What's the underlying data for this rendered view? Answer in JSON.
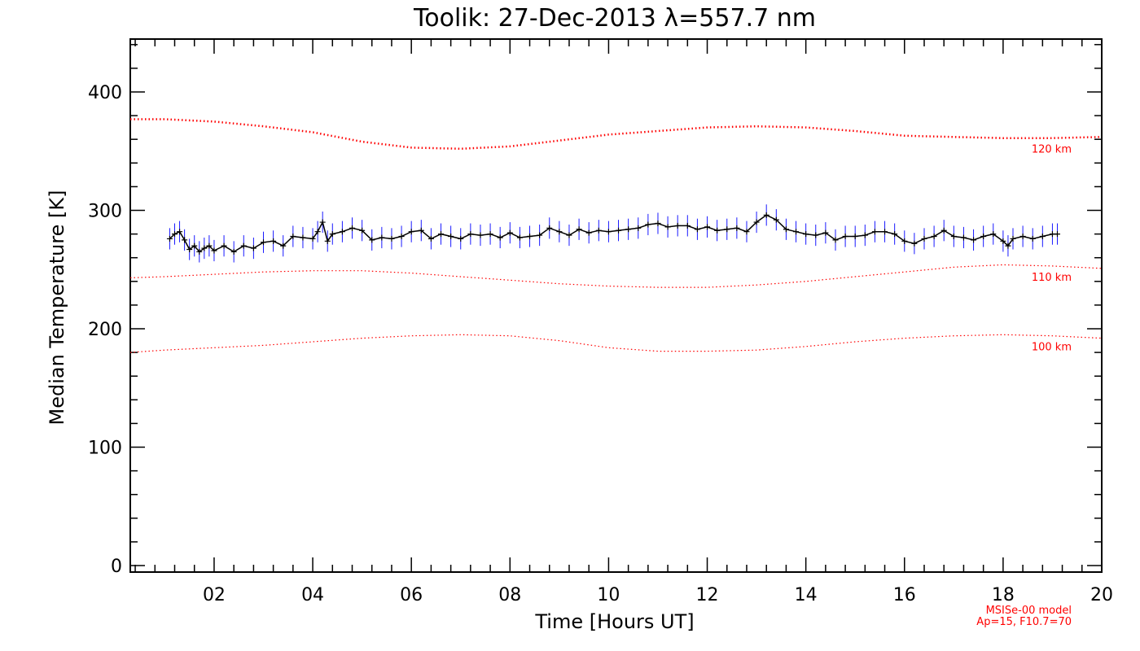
{
  "chart_data": {
    "type": "line",
    "title": "Toolik: 27-Dec-2013 λ=557.7 nm",
    "xlabel": "Time [Hours UT]",
    "ylabel": "Median Temperature [K]",
    "xlim": [
      0.3,
      20
    ],
    "ylim": [
      0,
      450
    ],
    "x_ticks": [
      2,
      4,
      6,
      8,
      10,
      12,
      14,
      16,
      18,
      20
    ],
    "x_tick_labels": [
      "02",
      "04",
      "06",
      "08",
      "10",
      "12",
      "14",
      "16",
      "18",
      "20"
    ],
    "y_ticks": [
      0,
      100,
      200,
      300,
      400
    ],
    "y_tick_labels": [
      "0",
      "100",
      "200",
      "300",
      "400"
    ],
    "grid": false,
    "colors": {
      "data_line": "#000000",
      "error_bars": "#1a1aff",
      "model": "#ff0000",
      "axes": "#000000"
    },
    "series": [
      {
        "x": [
          1.1,
          1.2,
          1.3,
          1.4,
          1.5,
          1.6,
          1.7,
          1.8,
          1.9,
          2.0,
          2.2,
          2.4,
          2.6,
          2.8,
          3.0,
          3.2,
          3.4,
          3.6,
          3.8,
          4.0,
          4.1,
          4.2,
          4.3,
          4.4,
          4.6,
          4.8,
          5.0,
          5.2,
          5.4,
          5.6,
          5.8,
          6.0,
          6.2,
          6.4,
          6.6,
          6.8,
          7.0,
          7.2,
          7.4,
          7.6,
          7.8,
          8.0,
          8.2,
          8.4,
          8.6,
          8.8,
          9.0,
          9.2,
          9.4,
          9.6,
          9.8,
          10.0,
          10.2,
          10.4,
          10.6,
          10.8,
          11.0,
          11.2,
          11.4,
          11.6,
          11.8,
          12.0,
          12.2,
          12.4,
          12.6,
          12.8,
          13.0,
          13.2,
          13.4,
          13.6,
          13.8,
          14.0,
          14.2,
          14.4,
          14.6,
          14.8,
          15.0,
          15.2,
          15.4,
          15.6,
          15.8,
          16.0,
          16.2,
          16.4,
          16.6,
          16.8,
          17.0,
          17.2,
          17.4,
          17.6,
          17.8,
          18.0,
          18.1,
          18.2,
          18.4,
          18.6,
          18.8,
          19.0,
          19.1
        ],
        "values": [
          276,
          280,
          282,
          275,
          267,
          270,
          265,
          268,
          270,
          266,
          270,
          265,
          270,
          268,
          273,
          274,
          270,
          278,
          277,
          276,
          282,
          290,
          274,
          280,
          282,
          285,
          283,
          275,
          277,
          276,
          278,
          282,
          283,
          276,
          280,
          278,
          276,
          280,
          279,
          280,
          277,
          281,
          277,
          278,
          279,
          285,
          282,
          279,
          284,
          281,
          283,
          282,
          283,
          284,
          285,
          288,
          289,
          286,
          287,
          287,
          284,
          286,
          283,
          284,
          285,
          282,
          290,
          296,
          292,
          284,
          282,
          280,
          279,
          281,
          275,
          278,
          278,
          279,
          282,
          282,
          280,
          274,
          272,
          276,
          278,
          283,
          278,
          277,
          275,
          278,
          280,
          274,
          270,
          276,
          278,
          276,
          278,
          280,
          280
        ],
        "error": 9
      }
    ],
    "model_curves": [
      {
        "label": "120 km",
        "x": [
          0.3,
          1,
          2,
          3,
          4,
          5,
          6,
          7,
          8,
          9,
          10,
          11,
          12,
          13,
          14,
          15,
          16,
          17,
          18,
          19,
          20
        ],
        "values": [
          377,
          377,
          375,
          371,
          366,
          358,
          353,
          352,
          354,
          359,
          364,
          367,
          370,
          371,
          370,
          367,
          363,
          362,
          361,
          361,
          362
        ]
      },
      {
        "label": "110 km",
        "x": [
          0.3,
          1,
          2,
          3,
          4,
          5,
          6,
          7,
          8,
          9,
          10,
          11,
          12,
          13,
          14,
          15,
          16,
          17,
          18,
          19,
          20
        ],
        "values": [
          243,
          244,
          246,
          248,
          249,
          249,
          247,
          244,
          241,
          238,
          236,
          235,
          235,
          237,
          240,
          244,
          248,
          252,
          254,
          253,
          251
        ]
      },
      {
        "label": "100 km",
        "x": [
          0.3,
          1,
          2,
          3,
          4,
          5,
          6,
          7,
          8,
          9,
          10,
          11,
          12,
          13,
          14,
          15,
          16,
          17,
          18,
          19,
          20
        ],
        "values": [
          180,
          182,
          184,
          186,
          189,
          192,
          194,
          195,
          194,
          190,
          184,
          181,
          181,
          182,
          185,
          189,
          192,
          194,
          195,
          194,
          192
        ]
      }
    ],
    "annotations": [
      "MSISe-00 model",
      "Ap=15, F10.7=70"
    ]
  }
}
